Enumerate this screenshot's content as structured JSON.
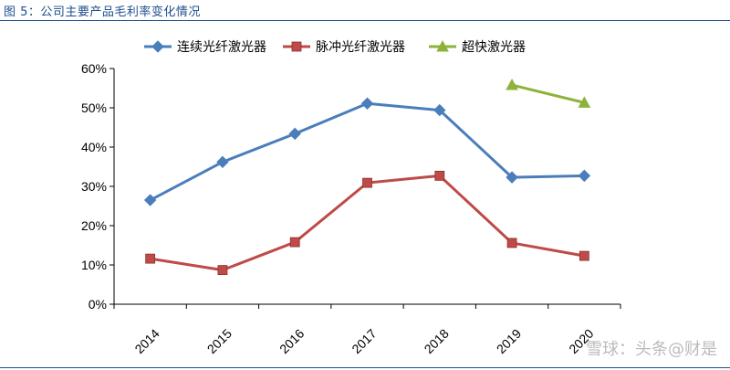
{
  "figure_title": "图 5：公司主要产品毛利率变化情况",
  "watermark": "雪球：头条@财是",
  "colors": {
    "title": "#1f4e8c",
    "rule": "#1f4e8c",
    "axis": "#000000"
  },
  "chart_data": {
    "type": "line",
    "title": "",
    "xlabel": "",
    "ylabel": "",
    "categories": [
      "2014",
      "2015",
      "2016",
      "2017",
      "2018",
      "2019",
      "2020"
    ],
    "yticks": [
      "0%",
      "10%",
      "20%",
      "30%",
      "40%",
      "50%",
      "60%"
    ],
    "ylim": [
      0,
      0.6
    ],
    "legend_position": "top",
    "grid": false,
    "series": [
      {
        "name": "连续光纤激光器",
        "color": "#4a7ebb",
        "marker": "diamond",
        "values": [
          0.265,
          0.362,
          0.434,
          0.511,
          0.494,
          0.323,
          0.327
        ]
      },
      {
        "name": "脉冲光纤激光器",
        "color": "#be4b48",
        "marker": "square",
        "values": [
          0.116,
          0.087,
          0.158,
          0.309,
          0.327,
          0.156,
          0.123
        ]
      },
      {
        "name": "超快激光器",
        "color": "#8db33b",
        "marker": "triangle",
        "values": [
          null,
          null,
          null,
          null,
          null,
          0.558,
          0.513
        ]
      }
    ]
  }
}
